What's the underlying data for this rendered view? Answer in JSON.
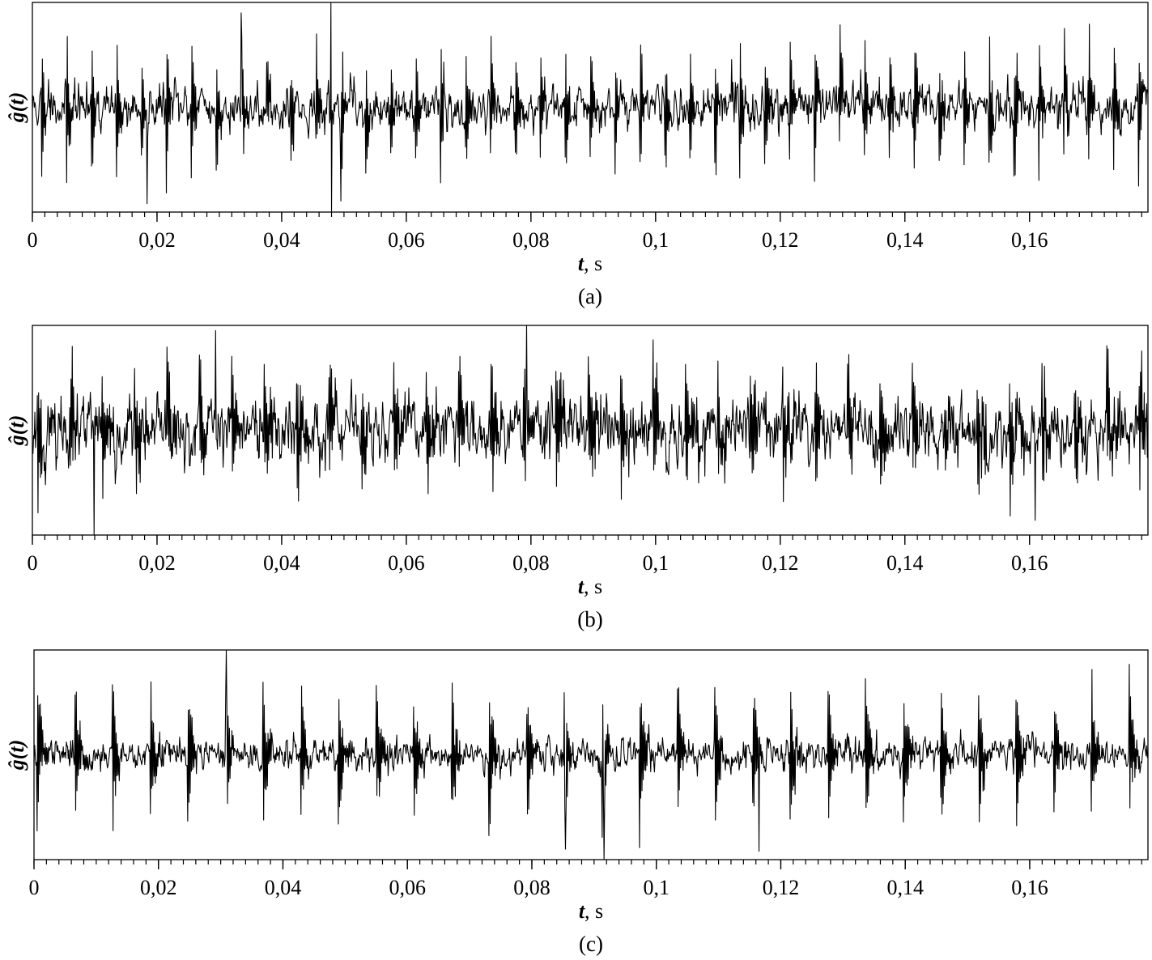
{
  "chart_data": [
    {
      "type": "line",
      "caption": "(a)",
      "xlabel_var": "t",
      "xlabel_unit": ", s",
      "ylabel": "ĝ(t)",
      "xlim": [
        0,
        0.179
      ],
      "ylim": [
        -1.0,
        1.0
      ],
      "x_ticks": [
        0,
        0.02,
        0.04,
        0.06,
        0.08,
        0.1,
        0.12,
        0.14,
        0.16
      ],
      "x_tick_labels": [
        "0",
        "0,02",
        "0,04",
        "0,06",
        "0,08",
        "0,1",
        "0,12",
        "0,14",
        "0,16"
      ],
      "minor_tick_step": 0.002,
      "signal": {
        "sample_step": 0.0001,
        "noise_std": 0.17,
        "pulse_period": 0.004,
        "pulse_phase": 0.0015,
        "pulse_pos_amp": 0.68,
        "pulse_neg_amp": 0.62,
        "pulse_decay": 0.0004,
        "seed": 11,
        "extremes": [
          {
            "t": 0.0479,
            "value": 1.0
          },
          {
            "t": 0.048,
            "value": -1.0
          },
          {
            "t": 0.0184,
            "value": -0.92
          },
          {
            "t": 0.0335,
            "value": 0.9
          }
        ]
      }
    },
    {
      "type": "line",
      "caption": "(b)",
      "xlabel_var": "t",
      "xlabel_unit": ", s",
      "ylabel": "ĝ(t)",
      "xlim": [
        0,
        0.179
      ],
      "ylim": [
        -1.0,
        1.0
      ],
      "x_ticks": [
        0,
        0.02,
        0.04,
        0.06,
        0.08,
        0.1,
        0.12,
        0.14,
        0.16
      ],
      "x_tick_labels": [
        "0",
        "0,02",
        "0,04",
        "0,06",
        "0,08",
        "0,1",
        "0,12",
        "0,14",
        "0,16"
      ],
      "minor_tick_step": 0.002,
      "signal": {
        "sample_step": 0.0001,
        "noise_std": 0.26,
        "pulse_period": 0.0052,
        "pulse_phase": 0.0008,
        "pulse_pos_amp": 0.55,
        "pulse_neg_amp": 0.5,
        "pulse_decay": 0.0008,
        "seed": 23,
        "extremes": [
          {
            "t": 0.0793,
            "value": 1.0
          },
          {
            "t": 0.0099,
            "value": -1.0
          },
          {
            "t": 0.0294,
            "value": 0.95
          },
          {
            "t": 0.1609,
            "value": -0.86
          }
        ]
      }
    },
    {
      "type": "line",
      "caption": "(c)",
      "xlabel_var": "t",
      "xlabel_unit": ", s",
      "ylabel": "ĝ(t)",
      "xlim": [
        0,
        0.179
      ],
      "ylim": [
        -1.0,
        1.0
      ],
      "x_ticks": [
        0,
        0.02,
        0.04,
        0.06,
        0.08,
        0.1,
        0.12,
        0.14,
        0.16
      ],
      "x_tick_labels": [
        "0",
        "0,02",
        "0,04",
        "0,06",
        "0,08",
        "0,1",
        "0,12",
        "0,14",
        "0,16"
      ],
      "minor_tick_step": 0.002,
      "signal": {
        "sample_step": 0.0001,
        "noise_std": 0.12,
        "pulse_period": 0.00605,
        "pulse_phase": 0.0005,
        "pulse_pos_amp": 0.75,
        "pulse_neg_amp": 0.7,
        "pulse_decay": 0.0006,
        "seed": 37,
        "extremes": [
          {
            "t": 0.0309,
            "value": 1.0
          },
          {
            "t": 0.0916,
            "value": -1.0
          },
          {
            "t": 0.0854,
            "value": -0.9
          },
          {
            "t": 0.1165,
            "value": -0.92
          }
        ]
      }
    }
  ]
}
